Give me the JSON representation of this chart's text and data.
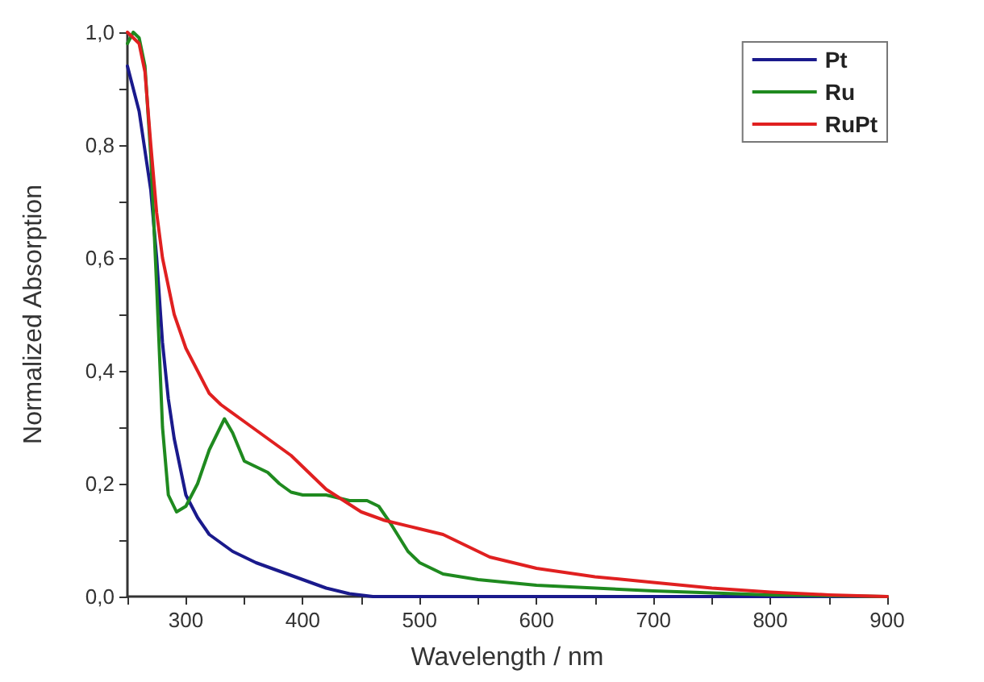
{
  "chart_data": {
    "type": "line",
    "xlabel": "Wavelength / nm",
    "ylabel": "Normalized Absorption",
    "xlim": [
      250,
      900
    ],
    "xticks": [
      {
        "value": 250,
        "label": null
      },
      300,
      {
        "value": 350,
        "label": null
      },
      400,
      {
        "value": 450,
        "label": null
      },
      500,
      {
        "value": 550,
        "label": null
      },
      600,
      {
        "value": 650,
        "label": null
      },
      700,
      {
        "value": 750,
        "label": null
      },
      800,
      {
        "value": 850,
        "label": null
      },
      900
    ],
    "ylim": [
      0,
      1
    ],
    "yticks": [
      {
        "value": 0,
        "label": "0,0"
      },
      {
        "value": 0.1,
        "label": null
      },
      {
        "value": 0.2,
        "label": "0,2"
      },
      {
        "value": 0.3,
        "label": null
      },
      {
        "value": 0.4,
        "label": "0,4"
      },
      {
        "value": 0.5,
        "label": null
      },
      {
        "value": 0.6,
        "label": "0,6"
      },
      {
        "value": 0.7,
        "label": null
      },
      {
        "value": 0.8,
        "label": "0,8"
      },
      {
        "value": 0.9,
        "label": null
      },
      {
        "value": 1,
        "label": "1,0"
      }
    ],
    "grid": false,
    "legend": "top right",
    "marker": "none",
    "line_style": "solid",
    "series": [
      {
        "name": "Pt",
        "color": "#1a1a8c",
        "x": [
          250,
          260,
          270,
          275,
          280,
          285,
          290,
          300,
          310,
          320,
          340,
          360,
          380,
          400,
          420,
          440,
          460,
          500,
          900
        ],
        "values": [
          0.94,
          0.86,
          0.72,
          0.6,
          0.45,
          0.35,
          0.28,
          0.18,
          0.14,
          0.11,
          0.08,
          0.06,
          0.045,
          0.03,
          0.015,
          0.005,
          0,
          0,
          0
        ]
      },
      {
        "name": "Ru",
        "color": "#1f8a1f",
        "x": [
          250,
          255,
          260,
          265,
          270,
          275,
          280,
          285,
          292,
          300,
          310,
          320,
          333,
          340,
          350,
          360,
          370,
          380,
          390,
          400,
          420,
          440,
          455,
          465,
          475,
          490,
          500,
          520,
          550,
          600,
          700,
          800,
          900
        ],
        "values": [
          0.98,
          1.0,
          0.99,
          0.94,
          0.78,
          0.55,
          0.3,
          0.18,
          0.15,
          0.16,
          0.2,
          0.26,
          0.315,
          0.29,
          0.24,
          0.23,
          0.22,
          0.2,
          0.185,
          0.18,
          0.18,
          0.17,
          0.17,
          0.16,
          0.13,
          0.08,
          0.06,
          0.04,
          0.03,
          0.02,
          0.01,
          0.003,
          0
        ]
      },
      {
        "name": "RuPt",
        "color": "#e02020",
        "x": [
          250,
          260,
          265,
          270,
          275,
          280,
          290,
          300,
          310,
          320,
          330,
          350,
          370,
          390,
          400,
          420,
          450,
          470,
          500,
          520,
          540,
          560,
          600,
          650,
          700,
          750,
          800,
          850,
          900
        ],
        "values": [
          1.0,
          0.98,
          0.93,
          0.8,
          0.68,
          0.6,
          0.5,
          0.44,
          0.4,
          0.36,
          0.34,
          0.31,
          0.28,
          0.25,
          0.23,
          0.19,
          0.15,
          0.135,
          0.12,
          0.11,
          0.09,
          0.07,
          0.05,
          0.035,
          0.025,
          0.015,
          0.008,
          0.003,
          0
        ]
      }
    ]
  }
}
